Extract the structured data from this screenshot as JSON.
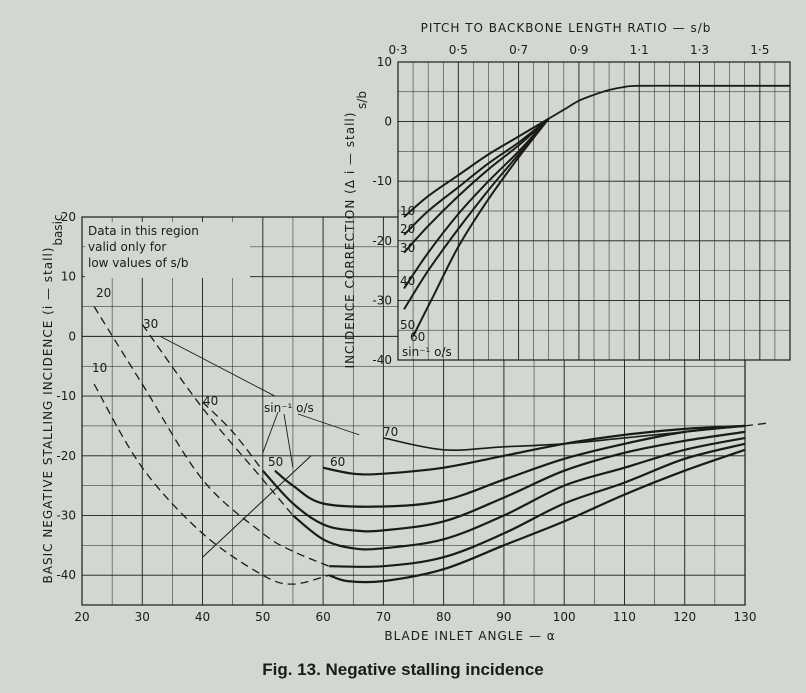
{
  "caption": "Fig. 13.  Negative stalling incidence",
  "chart_data": [
    {
      "type": "line",
      "xlabel": "BLADE INLET ANGLE — α",
      "ylabel": "BASIC NEGATIVE STALLING INCIDENCE (i — stall)",
      "ylabel_sub": "basic",
      "xlim": [
        20,
        130
      ],
      "ylim": [
        -45,
        20
      ],
      "x_ticks": [
        20,
        30,
        40,
        50,
        60,
        70,
        80,
        90,
        100,
        110,
        120,
        130
      ],
      "y_ticks": [
        20,
        10,
        0,
        -10,
        -20,
        -30,
        -40
      ],
      "grid": true,
      "note_lines": [
        "Data in this region",
        "valid only for",
        "low values of s/b"
      ],
      "parameter_label": "sin⁻¹ o/s",
      "series": [
        {
          "name": "10",
          "solid": [
            [
              61,
              -40
            ],
            [
              64,
              -41
            ],
            [
              70,
              -41
            ],
            [
              80,
              -39
            ],
            [
              90,
              -35
            ],
            [
              100,
              -31
            ],
            [
              110,
              -26.5
            ],
            [
              120,
              -22.5
            ],
            [
              130,
              -19
            ]
          ],
          "dashed": [
            [
              22,
              -8
            ],
            [
              30,
              -22
            ],
            [
              40,
              -33
            ],
            [
              50,
              -40
            ],
            [
              55,
              -41.5
            ],
            [
              61,
              -40
            ]
          ]
        },
        {
          "name": "20",
          "solid": [
            [
              61,
              -38.5
            ],
            [
              70,
              -38.5
            ],
            [
              80,
              -37
            ],
            [
              90,
              -33
            ],
            [
              100,
              -28
            ],
            [
              110,
              -24.5
            ],
            [
              120,
              -20.5
            ],
            [
              130,
              -18
            ]
          ],
          "dashed": [
            [
              22,
              5
            ],
            [
              30,
              -8
            ],
            [
              40,
              -24
            ],
            [
              50,
              -33
            ],
            [
              55,
              -36
            ],
            [
              61,
              -38.5
            ]
          ]
        },
        {
          "name": "30",
          "solid": [
            [
              55,
              -30
            ],
            [
              60,
              -34
            ],
            [
              65,
              -35.5
            ],
            [
              70,
              -35.5
            ],
            [
              80,
              -34
            ],
            [
              90,
              -30
            ],
            [
              100,
              -25
            ],
            [
              110,
              -22
            ],
            [
              120,
              -19
            ],
            [
              130,
              -17
            ]
          ],
          "dashed": [
            [
              30,
              2
            ],
            [
              40,
              -12
            ],
            [
              50,
              -24
            ],
            [
              55,
              -30
            ]
          ]
        },
        {
          "name": "40",
          "solid": [
            [
              50,
              -22.5
            ],
            [
              55,
              -28
            ],
            [
              60,
              -31.5
            ],
            [
              65,
              -32.5
            ],
            [
              70,
              -32.5
            ],
            [
              80,
              -31
            ],
            [
              90,
              -27
            ],
            [
              100,
              -22.5
            ],
            [
              110,
              -19.5
            ],
            [
              120,
              -17.5
            ],
            [
              130,
              -16
            ]
          ],
          "dashed": [
            [
              40,
              -11
            ],
            [
              45,
              -16
            ],
            [
              50,
              -22.5
            ]
          ]
        },
        {
          "name": "50",
          "solid": [
            [
              52,
              -22.5
            ],
            [
              55,
              -25
            ],
            [
              60,
              -28
            ],
            [
              70,
              -28.5
            ],
            [
              80,
              -27.5
            ],
            [
              90,
              -24
            ],
            [
              100,
              -20.5
            ],
            [
              110,
              -18
            ],
            [
              120,
              -16
            ],
            [
              130,
              -15
            ]
          ],
          "dashed": []
        },
        {
          "name": "60",
          "solid": [
            [
              60,
              -22
            ],
            [
              65,
              -23
            ],
            [
              70,
              -23
            ],
            [
              80,
              -22
            ],
            [
              90,
              -20
            ],
            [
              100,
              -18
            ],
            [
              110,
              -16.5
            ],
            [
              120,
              -15.5
            ],
            [
              130,
              -15
            ]
          ],
          "dashed": []
        },
        {
          "name": "70",
          "solid": [
            [
              70,
              -17
            ],
            [
              80,
              -19
            ],
            [
              90,
              -18.5
            ],
            [
              100,
              -18
            ],
            [
              110,
              -17
            ],
            [
              120,
              -16
            ],
            [
              130,
              -15
            ]
          ],
          "dashed": [
            [
              130,
              -15
            ],
            [
              134,
              -14.5
            ]
          ]
        }
      ]
    },
    {
      "type": "line",
      "title": "PITCH TO BACKBONE LENGTH RATIO — s/b",
      "ylabel": "INCIDENCE CORRECTION (Δ i — stall)",
      "ylabel_sub": "s/b",
      "xlim": [
        0.3,
        1.6
      ],
      "ylim": [
        -40,
        10
      ],
      "x_ticks": [
        "0·3",
        "0·5",
        "0·7",
        "0·9",
        "1·1",
        "1·3",
        "1·5"
      ],
      "x_tick_values": [
        0.3,
        0.5,
        0.7,
        0.9,
        1.1,
        1.3,
        1.5
      ],
      "y_ticks": [
        10,
        0,
        -10,
        -20,
        -30,
        -40
      ],
      "grid": true,
      "parameter_label": "sin⁻¹ o/s",
      "common_curve": [
        [
          0.8,
          0.5
        ],
        [
          0.85,
          2
        ],
        [
          0.9,
          3.5
        ],
        [
          0.95,
          4.5
        ],
        [
          1.0,
          5.3
        ],
        [
          1.05,
          5.8
        ],
        [
          1.1,
          6
        ],
        [
          1.3,
          6
        ],
        [
          1.5,
          6
        ],
        [
          1.6,
          6
        ]
      ],
      "series": [
        {
          "name": "10",
          "values": [
            [
              0.32,
              -16
            ],
            [
              0.4,
              -12.5
            ],
            [
              0.5,
              -9
            ],
            [
              0.6,
              -5.5
            ],
            [
              0.7,
              -2.5
            ],
            [
              0.8,
              0.5
            ]
          ]
        },
        {
          "name": "20",
          "values": [
            [
              0.32,
              -19
            ],
            [
              0.4,
              -15
            ],
            [
              0.5,
              -11
            ],
            [
              0.6,
              -7
            ],
            [
              0.7,
              -3.5
            ],
            [
              0.8,
              0.5
            ]
          ]
        },
        {
          "name": "30",
          "values": [
            [
              0.32,
              -22
            ],
            [
              0.4,
              -17.5
            ],
            [
              0.5,
              -12.5
            ],
            [
              0.6,
              -8
            ],
            [
              0.7,
              -4
            ],
            [
              0.8,
              0.5
            ]
          ]
        },
        {
          "name": "40",
          "values": [
            [
              0.32,
              -28
            ],
            [
              0.4,
              -22
            ],
            [
              0.5,
              -15.5
            ],
            [
              0.6,
              -10
            ],
            [
              0.7,
              -5
            ],
            [
              0.8,
              0.5
            ]
          ]
        },
        {
          "name": "50",
          "values": [
            [
              0.32,
              -31.5
            ],
            [
              0.4,
              -25
            ],
            [
              0.5,
              -18
            ],
            [
              0.6,
              -11.5
            ],
            [
              0.7,
              -5.5
            ],
            [
              0.8,
              0.5
            ]
          ]
        },
        {
          "name": "60",
          "values": [
            [
              0.35,
              -36
            ],
            [
              0.42,
              -29
            ],
            [
              0.5,
              -21
            ],
            [
              0.6,
              -13
            ],
            [
              0.7,
              -6
            ],
            [
              0.8,
              0.5
            ]
          ]
        }
      ]
    }
  ]
}
